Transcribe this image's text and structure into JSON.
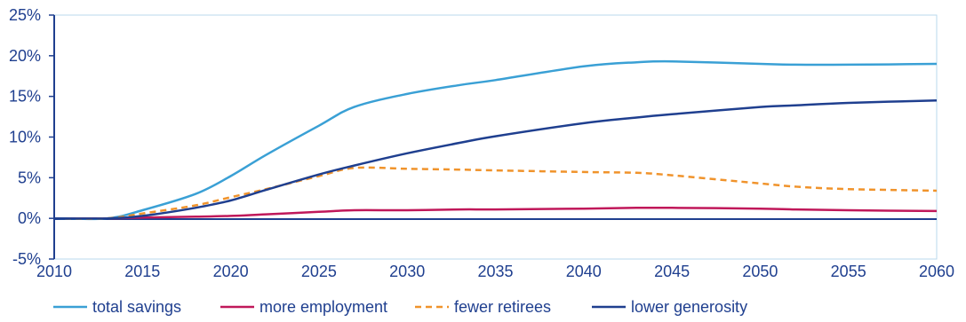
{
  "colors": {
    "axis": "#1f3f8f",
    "frame": "#b9d9ec",
    "tick_text": "#1f3f8f"
  },
  "chart_data": {
    "type": "line",
    "title": "",
    "xlabel": "",
    "ylabel": "",
    "xlim": [
      2010,
      2060
    ],
    "ylim": [
      -5,
      25
    ],
    "x_ticks": [
      2010,
      2015,
      2020,
      2025,
      2030,
      2035,
      2040,
      2045,
      2050,
      2055,
      2060
    ],
    "y_ticks": [
      -5,
      0,
      5,
      10,
      15,
      20,
      25
    ],
    "y_tick_labels": [
      "-5%",
      "0%",
      "5%",
      "10%",
      "15%",
      "20%",
      "25%"
    ],
    "x_tick_labels": [
      "2010",
      "2015",
      "2020",
      "2025",
      "2030",
      "2035",
      "2040",
      "2045",
      "2050",
      "2055",
      "2060"
    ],
    "grid": false,
    "legend_position": "bottom",
    "x": [
      2010,
      2013,
      2015,
      2018,
      2020,
      2022,
      2025,
      2027,
      2030,
      2033,
      2035,
      2040,
      2043,
      2045,
      2050,
      2052,
      2055,
      2060
    ],
    "series": [
      {
        "name": "total savings",
        "color": "#3aa0d5",
        "dash": "solid",
        "values": [
          0,
          0,
          1.0,
          3.0,
          5.2,
          7.8,
          11.4,
          13.7,
          15.3,
          16.4,
          17.0,
          18.7,
          19.2,
          19.3,
          19.0,
          18.9,
          18.9,
          19.0
        ]
      },
      {
        "name": "more employment",
        "color": "#c0185a",
        "dash": "solid",
        "values": [
          0,
          0,
          0.1,
          0.2,
          0.3,
          0.5,
          0.8,
          1.0,
          1.0,
          1.1,
          1.1,
          1.2,
          1.3,
          1.3,
          1.2,
          1.1,
          1.0,
          0.9
        ]
      },
      {
        "name": "fewer retirees",
        "color": "#f0932b",
        "dash": "dashed",
        "values": [
          0,
          0,
          0.6,
          1.6,
          2.6,
          3.6,
          5.2,
          6.2,
          6.1,
          6.0,
          5.9,
          5.7,
          5.6,
          5.3,
          4.3,
          3.9,
          3.6,
          3.4
        ]
      },
      {
        "name": "lower generosity",
        "color": "#1f3f8f",
        "dash": "solid",
        "values": [
          0,
          0,
          0.3,
          1.3,
          2.2,
          3.5,
          5.4,
          6.5,
          8.0,
          9.3,
          10.1,
          11.7,
          12.4,
          12.8,
          13.7,
          13.9,
          14.2,
          14.5
        ]
      }
    ]
  }
}
